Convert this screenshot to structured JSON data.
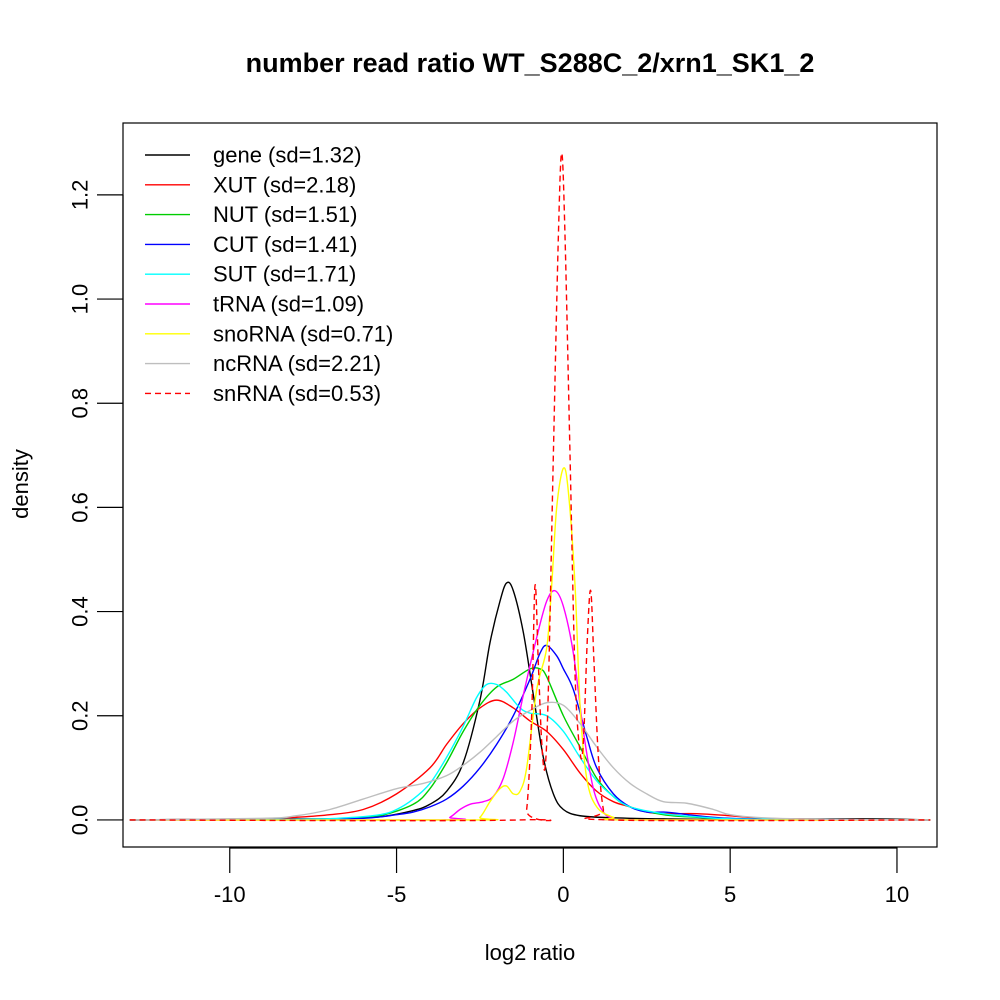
{
  "chart_data": {
    "type": "line",
    "title": "number read ratio WT_S288C_2/xrn1_SK1_2",
    "xlabel": "log2 ratio",
    "ylabel": "density",
    "xlim": [
      -13.2,
      11.2
    ],
    "ylim": [
      -0.052,
      1.338
    ],
    "x_ticks": [
      -10,
      -5,
      0,
      5,
      10
    ],
    "x_tick_labels": [
      "-10",
      "-5",
      "0",
      "5",
      "10"
    ],
    "y_ticks": [
      0,
      0.2,
      0.4,
      0.6,
      0.8,
      1.0,
      1.2
    ],
    "y_tick_labels": [
      "0.0",
      "0.2",
      "0.4",
      "0.6",
      "0.8",
      "1.0",
      "1.2"
    ],
    "grid": false,
    "legend_position": "top-left",
    "series": [
      {
        "name": "gene (sd=1.32)",
        "color": "#000000",
        "dash": "solid",
        "points": [
          [
            -13,
            0
          ],
          [
            -9,
            0.002
          ],
          [
            -7,
            0.002
          ],
          [
            -5.5,
            0.006
          ],
          [
            -4.5,
            0.018
          ],
          [
            -4,
            0.03
          ],
          [
            -3.5,
            0.055
          ],
          [
            -3,
            0.11
          ],
          [
            -2.5,
            0.23
          ],
          [
            -2.2,
            0.34
          ],
          [
            -1.9,
            0.42
          ],
          [
            -1.7,
            0.455
          ],
          [
            -1.5,
            0.44
          ],
          [
            -1.2,
            0.36
          ],
          [
            -0.9,
            0.24
          ],
          [
            -0.6,
            0.12
          ],
          [
            -0.3,
            0.05
          ],
          [
            0,
            0.02
          ],
          [
            0.5,
            0.008
          ],
          [
            1.5,
            0.004
          ],
          [
            3,
            0.002
          ],
          [
            5,
            0.001
          ],
          [
            9,
            0.002
          ],
          [
            11,
            0
          ]
        ]
      },
      {
        "name": "XUT (sd=2.18)",
        "color": "#ff0000",
        "dash": "solid",
        "points": [
          [
            -13,
            0
          ],
          [
            -9,
            0.002
          ],
          [
            -8,
            0.005
          ],
          [
            -7,
            0.01
          ],
          [
            -6,
            0.02
          ],
          [
            -5,
            0.05
          ],
          [
            -4,
            0.1
          ],
          [
            -3.5,
            0.145
          ],
          [
            -3,
            0.185
          ],
          [
            -2.5,
            0.215
          ],
          [
            -2,
            0.23
          ],
          [
            -1.5,
            0.215
          ],
          [
            -1,
            0.19
          ],
          [
            -0.5,
            0.17
          ],
          [
            0,
            0.135
          ],
          [
            0.5,
            0.09
          ],
          [
            1,
            0.055
          ],
          [
            1.5,
            0.035
          ],
          [
            2,
            0.025
          ],
          [
            2.5,
            0.015
          ],
          [
            3,
            0.012
          ],
          [
            4,
            0.012
          ],
          [
            5,
            0.008
          ],
          [
            6,
            0.003
          ],
          [
            8,
            0.001
          ],
          [
            11,
            0
          ]
        ]
      },
      {
        "name": "NUT (sd=1.51)",
        "color": "#00cd00",
        "dash": "solid",
        "points": [
          [
            -13,
            0
          ],
          [
            -8,
            0.001
          ],
          [
            -6.5,
            0.003
          ],
          [
            -5.5,
            0.008
          ],
          [
            -4.5,
            0.03
          ],
          [
            -4,
            0.06
          ],
          [
            -3.5,
            0.11
          ],
          [
            -3,
            0.17
          ],
          [
            -2.5,
            0.22
          ],
          [
            -2,
            0.255
          ],
          [
            -1.5,
            0.27
          ],
          [
            -1,
            0.29
          ],
          [
            -0.7,
            0.29
          ],
          [
            -0.5,
            0.275
          ],
          [
            0,
            0.2
          ],
          [
            0.5,
            0.14
          ],
          [
            1,
            0.08
          ],
          [
            1.5,
            0.045
          ],
          [
            2,
            0.025
          ],
          [
            3,
            0.01
          ],
          [
            4,
            0.005
          ],
          [
            5,
            0.002
          ],
          [
            7,
            0.001
          ],
          [
            11,
            0
          ]
        ]
      },
      {
        "name": "CUT (sd=1.41)",
        "color": "#0000ff",
        "dash": "solid",
        "points": [
          [
            -13,
            0
          ],
          [
            -8,
            0.001
          ],
          [
            -6,
            0.003
          ],
          [
            -5,
            0.01
          ],
          [
            -4.5,
            0.015
          ],
          [
            -4,
            0.025
          ],
          [
            -3.5,
            0.04
          ],
          [
            -3,
            0.065
          ],
          [
            -2.5,
            0.1
          ],
          [
            -2,
            0.145
          ],
          [
            -1.5,
            0.2
          ],
          [
            -1,
            0.27
          ],
          [
            -0.7,
            0.32
          ],
          [
            -0.5,
            0.335
          ],
          [
            -0.2,
            0.315
          ],
          [
            0,
            0.29
          ],
          [
            0.3,
            0.25
          ],
          [
            0.7,
            0.16
          ],
          [
            1,
            0.1
          ],
          [
            1.5,
            0.05
          ],
          [
            2,
            0.025
          ],
          [
            2.5,
            0.015
          ],
          [
            3,
            0.015
          ],
          [
            3.5,
            0.012
          ],
          [
            4,
            0.008
          ],
          [
            5,
            0.003
          ],
          [
            7,
            0.001
          ],
          [
            11,
            0
          ]
        ]
      },
      {
        "name": "SUT (sd=1.71)",
        "color": "#00ffff",
        "dash": "solid",
        "points": [
          [
            -13,
            0
          ],
          [
            -8,
            0.001
          ],
          [
            -6.5,
            0.004
          ],
          [
            -5.5,
            0.01
          ],
          [
            -5,
            0.02
          ],
          [
            -4.5,
            0.04
          ],
          [
            -4,
            0.07
          ],
          [
            -3.5,
            0.12
          ],
          [
            -3,
            0.18
          ],
          [
            -2.6,
            0.235
          ],
          [
            -2.3,
            0.26
          ],
          [
            -2,
            0.26
          ],
          [
            -1.7,
            0.245
          ],
          [
            -1.3,
            0.215
          ],
          [
            -1,
            0.205
          ],
          [
            -0.5,
            0.2
          ],
          [
            0,
            0.17
          ],
          [
            0.5,
            0.12
          ],
          [
            1,
            0.075
          ],
          [
            1.5,
            0.045
          ],
          [
            2,
            0.025
          ],
          [
            3,
            0.012
          ],
          [
            4,
            0.006
          ],
          [
            5,
            0.002
          ],
          [
            7,
            0.001
          ],
          [
            11,
            0
          ]
        ]
      },
      {
        "name": "tRNA (sd=1.09)",
        "color": "#ff00ff",
        "dash": "solid",
        "points": [
          [
            -13,
            0
          ],
          [
            -3.7,
            0
          ],
          [
            -3.4,
            0.005
          ],
          [
            -3.1,
            0.02
          ],
          [
            -2.8,
            0.03
          ],
          [
            -2.4,
            0.035
          ],
          [
            -2.1,
            0.045
          ],
          [
            -1.8,
            0.08
          ],
          [
            -1.5,
            0.15
          ],
          [
            -1.2,
            0.24
          ],
          [
            -0.8,
            0.35
          ],
          [
            -0.5,
            0.42
          ],
          [
            -0.25,
            0.44
          ],
          [
            0,
            0.41
          ],
          [
            0.3,
            0.32
          ],
          [
            0.6,
            0.17
          ],
          [
            0.9,
            0.06
          ],
          [
            1.2,
            0.015
          ],
          [
            1.5,
            0.003
          ],
          [
            2,
            0
          ],
          [
            11,
            0
          ]
        ]
      },
      {
        "name": "snoRNA (sd=0.71)",
        "color": "#ffff00",
        "dash": "solid",
        "points": [
          [
            -13,
            0
          ],
          [
            -2.8,
            0
          ],
          [
            -2.5,
            0.005
          ],
          [
            -2.2,
            0.035
          ],
          [
            -1.9,
            0.06
          ],
          [
            -1.7,
            0.065
          ],
          [
            -1.5,
            0.05
          ],
          [
            -1.3,
            0.055
          ],
          [
            -1.1,
            0.1
          ],
          [
            -0.8,
            0.25
          ],
          [
            -0.5,
            0.33
          ],
          [
            -0.35,
            0.45
          ],
          [
            -0.2,
            0.6
          ],
          [
            0,
            0.675
          ],
          [
            0.15,
            0.63
          ],
          [
            0.35,
            0.45
          ],
          [
            0.5,
            0.22
          ],
          [
            0.7,
            0.08
          ],
          [
            1,
            0.025
          ],
          [
            1.5,
            0.005
          ],
          [
            2,
            0
          ],
          [
            11,
            0
          ]
        ]
      },
      {
        "name": "ncRNA (sd=2.21)",
        "color": "#bebebe",
        "dash": "solid",
        "points": [
          [
            -13,
            0
          ],
          [
            -9,
            0.003
          ],
          [
            -8,
            0.008
          ],
          [
            -7,
            0.02
          ],
          [
            -6,
            0.04
          ],
          [
            -5,
            0.06
          ],
          [
            -4.2,
            0.07
          ],
          [
            -3.5,
            0.085
          ],
          [
            -3,
            0.105
          ],
          [
            -2.5,
            0.13
          ],
          [
            -2,
            0.16
          ],
          [
            -1.5,
            0.19
          ],
          [
            -1,
            0.21
          ],
          [
            -0.5,
            0.225
          ],
          [
            0,
            0.22
          ],
          [
            0.5,
            0.185
          ],
          [
            1,
            0.14
          ],
          [
            1.5,
            0.1
          ],
          [
            2,
            0.07
          ],
          [
            2.5,
            0.05
          ],
          [
            3,
            0.035
          ],
          [
            3.7,
            0.032
          ],
          [
            4.5,
            0.02
          ],
          [
            5,
            0.01
          ],
          [
            6,
            0.004
          ],
          [
            8,
            0.001
          ],
          [
            11,
            0
          ]
        ]
      },
      {
        "name": "snRNA (sd=0.53)",
        "color": "#ff0000",
        "dash": "dashed",
        "points": [
          [
            -13,
            0
          ],
          [
            -1.3,
            0
          ],
          [
            -1.1,
            0.02
          ],
          [
            -0.95,
            0.2
          ],
          [
            -0.85,
            0.45
          ],
          [
            -0.75,
            0.3
          ],
          [
            -0.65,
            0.15
          ],
          [
            -0.55,
            0.1
          ],
          [
            -0.45,
            0.25
          ],
          [
            -0.3,
            0.7
          ],
          [
            -0.15,
            1.12
          ],
          [
            -0.05,
            1.28
          ],
          [
            0.05,
            1.12
          ],
          [
            0.2,
            0.7
          ],
          [
            0.35,
            0.28
          ],
          [
            0.5,
            0.13
          ],
          [
            0.6,
            0.15
          ],
          [
            0.72,
            0.35
          ],
          [
            0.82,
            0.44
          ],
          [
            0.92,
            0.3
          ],
          [
            1.05,
            0.12
          ],
          [
            1.2,
            0.02
          ],
          [
            1.4,
            0
          ],
          [
            11,
            0
          ]
        ]
      }
    ]
  }
}
